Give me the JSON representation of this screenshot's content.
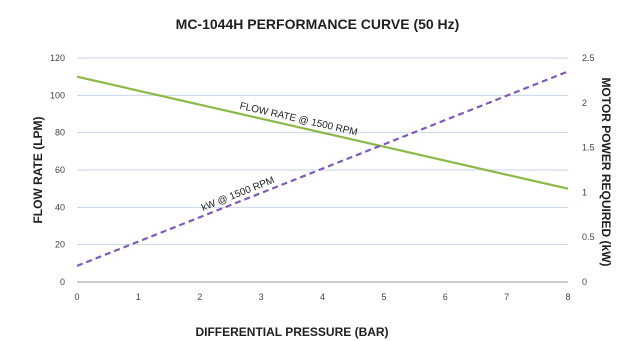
{
  "chart_data": {
    "type": "line",
    "title": "MC-1044H PERFORMANCE CURVE (50 Hz)",
    "xlabel": "DIFFERENTIAL PRESSURE (BAR)",
    "ylabel_left": "FLOW RATE (LPM)",
    "ylabel_right": "MOTOR POWER REQUIRED (kW)",
    "xlim": [
      0,
      8
    ],
    "ylim_left": [
      0,
      120
    ],
    "ylim_right": [
      0,
      2.5
    ],
    "x_ticks": [
      "0",
      "1",
      "2",
      "3",
      "4",
      "5",
      "6",
      "7",
      "8"
    ],
    "y_left_ticks": [
      "0",
      "20",
      "40",
      "60",
      "80",
      "100",
      "120"
    ],
    "y_right_ticks": [
      "0",
      "0.5",
      "1",
      "1.5",
      "2",
      "2.5"
    ],
    "grid": "horizontal",
    "series": [
      {
        "name": "FLOW RATE @ 1500 RPM",
        "axis": "left",
        "style": "solid",
        "color": "#8cb84a",
        "x": [
          0,
          8
        ],
        "y": [
          110,
          50
        ]
      },
      {
        "name": "kW @ 1500 RPM",
        "axis": "right",
        "style": "dashed",
        "color": "#7e5bb6",
        "x": [
          0,
          8
        ],
        "y": [
          0.18,
          2.35
        ]
      }
    ]
  }
}
